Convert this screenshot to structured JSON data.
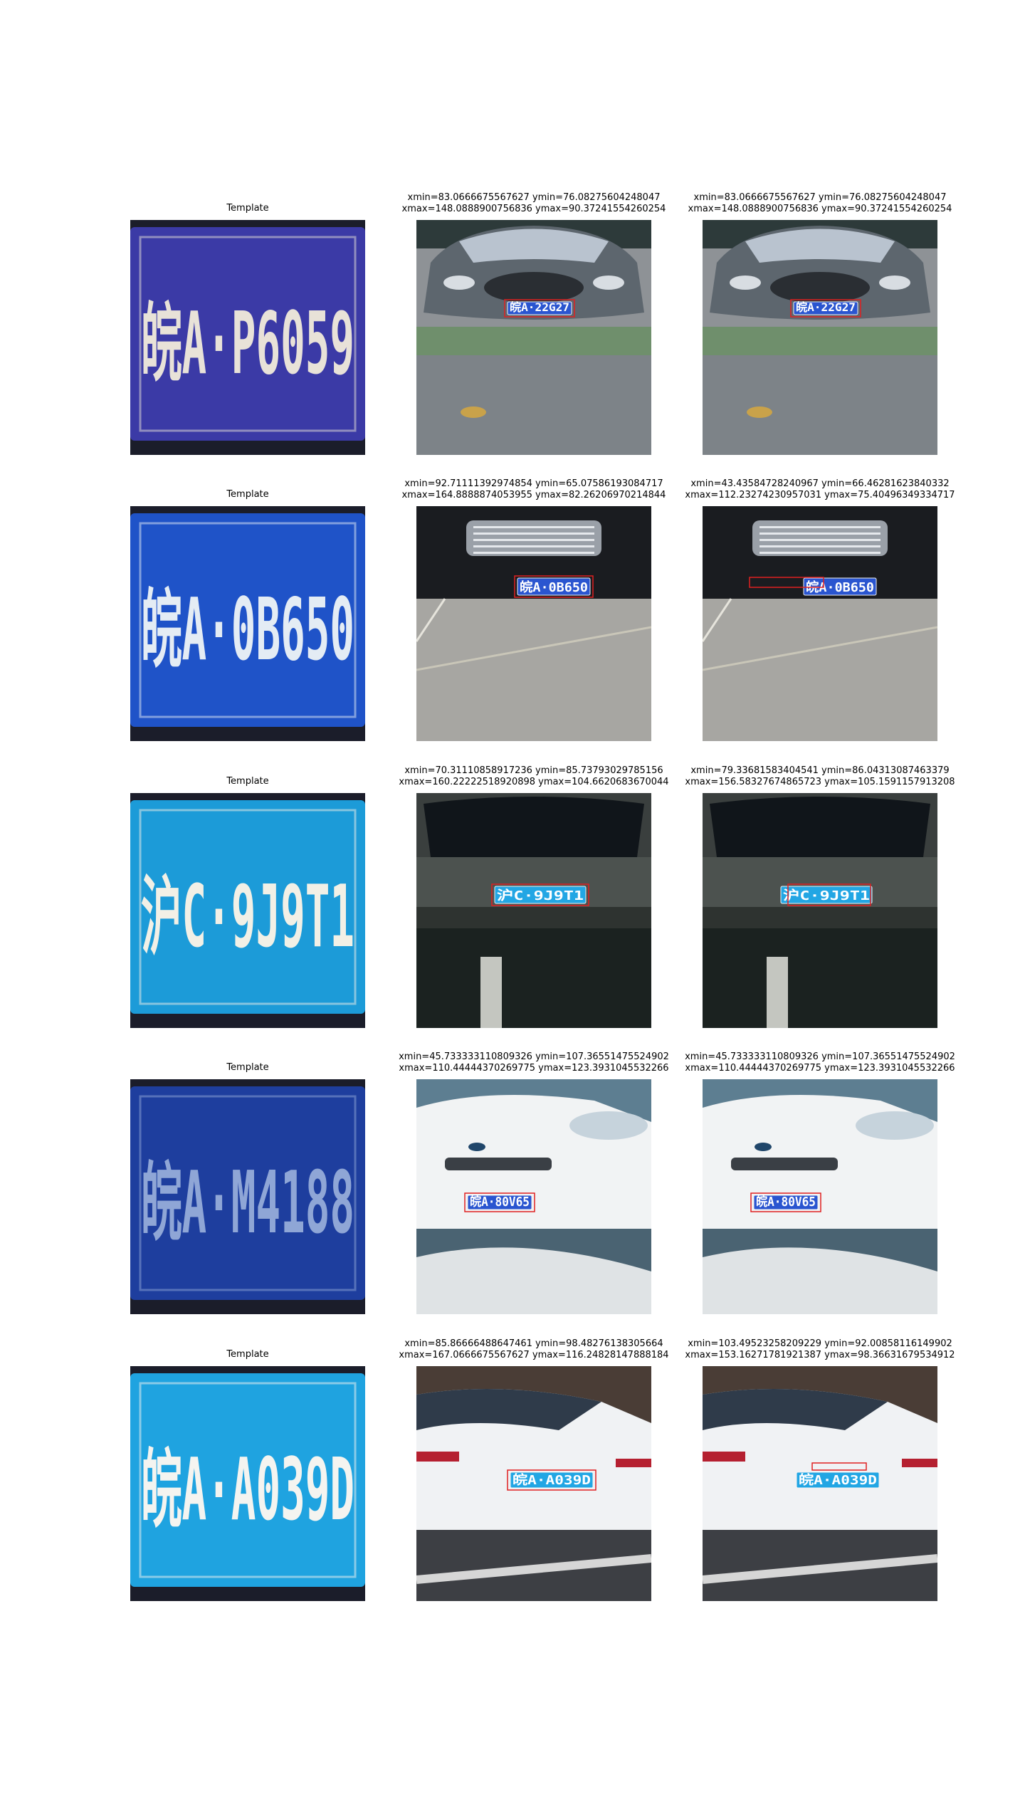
{
  "rows": [
    {
      "template": {
        "title": "Template",
        "plate": "皖A·P6059",
        "bg": "#3b3aa6",
        "fg": "#e8e2d8"
      },
      "gt": {
        "line1": "xmin=83.0666675567627 ymin=76.08275604248047",
        "line2": "xmax=148.0888900756836 ymax=90.37241554260254",
        "plate": "皖A·22G27",
        "scene": "sedan-front-grey"
      },
      "pred": {
        "line1": "xmin=83.0666675567627 ymin=76.08275604248047",
        "line2": "xmax=148.0888900756836 ymax=90.37241554260254",
        "plate": "皖A·22G27",
        "scene": "sedan-front-grey"
      }
    },
    {
      "template": {
        "title": "Template",
        "plate": "皖A·0B650",
        "bg": "#1f53c8",
        "fg": "#e4ecf4"
      },
      "gt": {
        "line1": "xmin=92.71111392974854 ymin=65.07586193084717",
        "line2": "xmax=164.8888874053955 ymax=82.26206970214844",
        "plate": "皖A·0B650",
        "scene": "suv-front-black"
      },
      "pred": {
        "line1": "xmin=43.43584728240967 ymin=66.46281623840332",
        "line2": "xmax=112.23274230957031 ymax=75.40496349334717",
        "plate": "皖A·0B650",
        "scene": "suv-front-black"
      }
    },
    {
      "template": {
        "title": "Template",
        "plate": "沪C·9J9T1",
        "bg": "#1c9bd8",
        "fg": "#f2f0e6"
      },
      "gt": {
        "line1": "xmin=70.31110858917236 ymin=85.73793029785156",
        "line2": "xmax=160.22222518920898 ymax=104.6620683670044",
        "plate": "沪C·9J9T1",
        "scene": "car-rear-dark"
      },
      "pred": {
        "line1": "xmin=79.33681583404541 ymin=86.04313087463379",
        "line2": "xmax=156.58327674865723 ymax=105.1591157913208",
        "plate": "沪C·9J9T1",
        "scene": "car-rear-dark"
      }
    },
    {
      "template": {
        "title": "Template",
        "plate": "皖A·M4188",
        "bg": "#1e3e9e",
        "fg": "#8fa6d6"
      },
      "gt": {
        "line1": "xmin=45.733333110809326 ymin=107.36551475524902",
        "line2": "xmax=110.44444370269775 ymax=123.3931045532266",
        "plate": "皖A·80V65",
        "scene": "hatch-front-white"
      },
      "pred": {
        "line1": "xmin=45.733333110809326 ymin=107.36551475524902",
        "line2": "xmax=110.44444370269775 ymax=123.3931045532266",
        "plate": "皖A·80V65",
        "scene": "hatch-front-white"
      }
    },
    {
      "template": {
        "title": "Template",
        "plate": "皖A·A039D",
        "bg": "#1fa3e0",
        "fg": "#f4f4f0"
      },
      "gt": {
        "line1": "xmin=85.86666488647461 ymin=98.48276138305664",
        "line2": "xmax=167.06666755676 27 ymax=116.24828147888184",
        "plate": "皖A·A039D",
        "scene": "sedan-rear-white"
      },
      "pred": {
        "line1": "xmin=103.49523258209229 ymin=92.00858116149902",
        "line2": "xmax=153.16271781921387 ymax=98.36631679534912",
        "plate": "皖A·A039D",
        "scene": "sedan-rear-white"
      }
    }
  ],
  "colors": {
    "box": "#e02020",
    "plateBlue": "#2a55d0",
    "plateCyan": "#22a6e4"
  }
}
